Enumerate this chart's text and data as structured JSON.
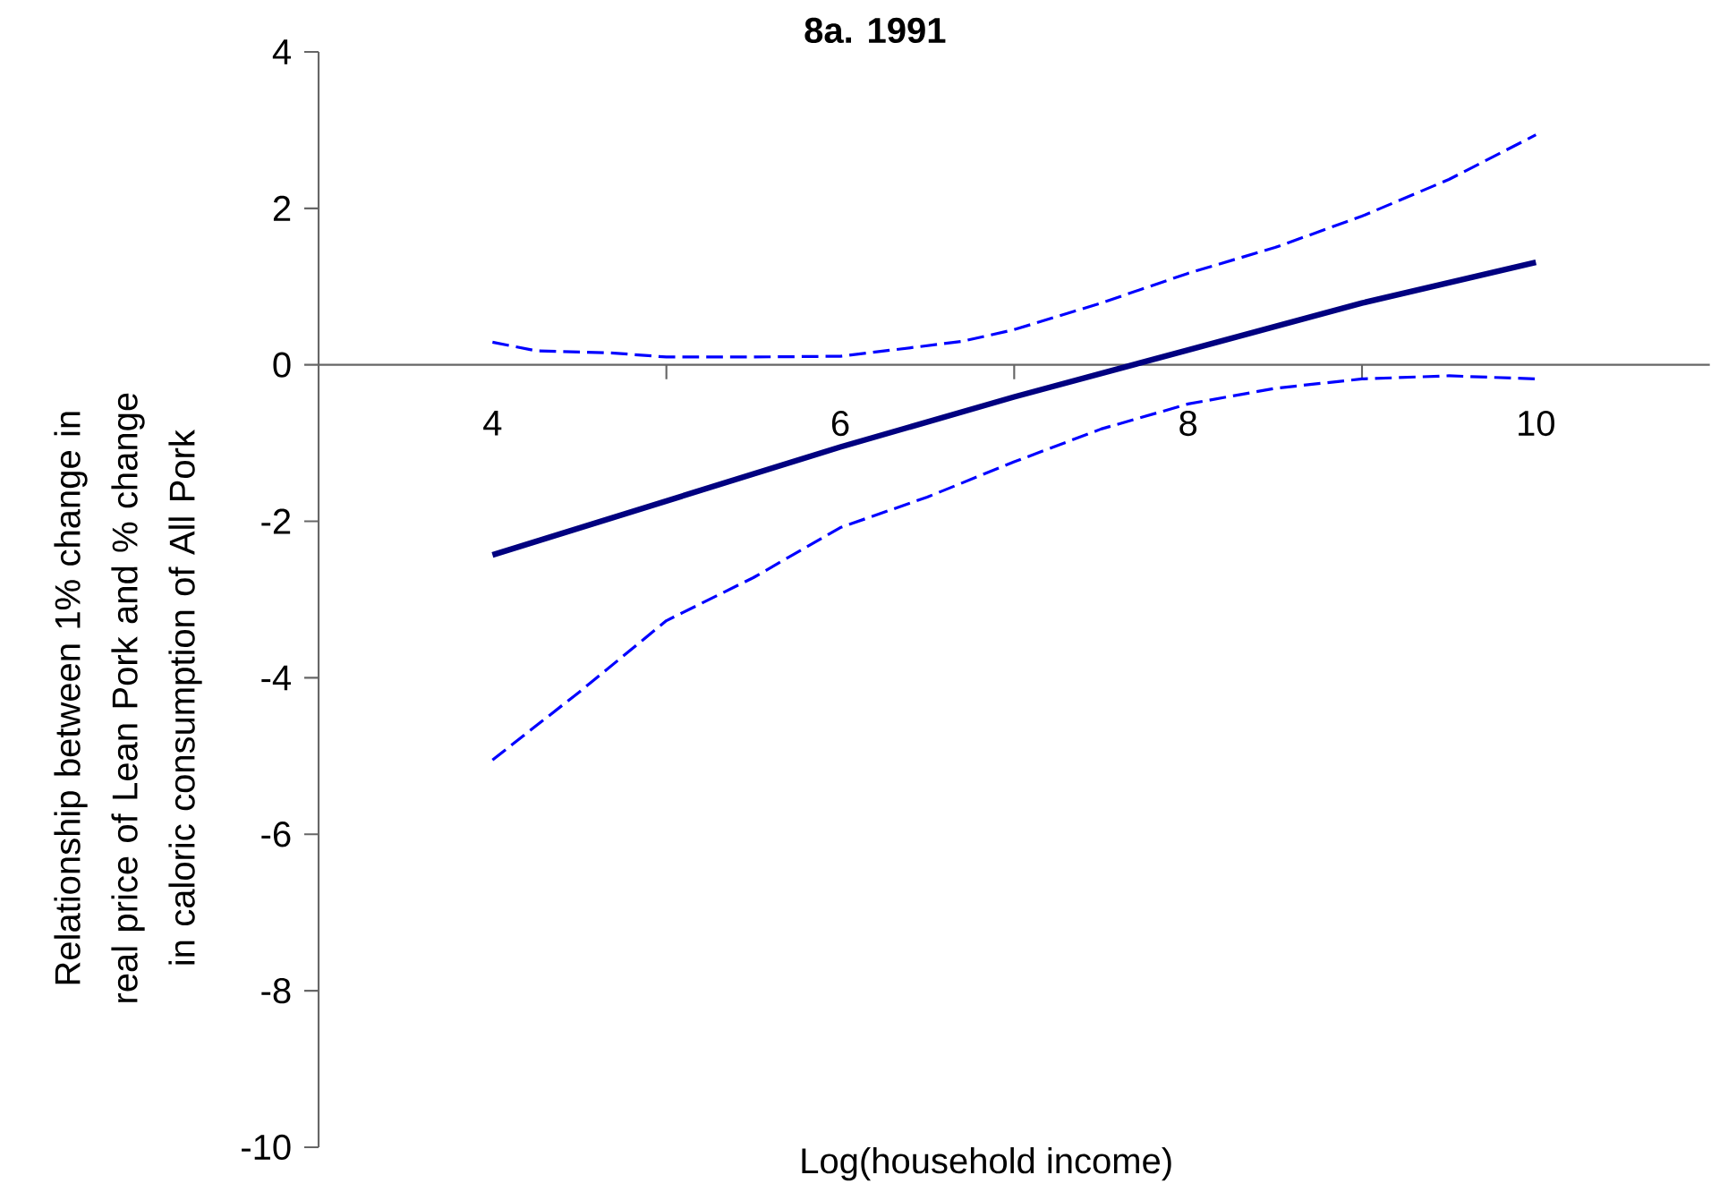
{
  "chart_data": {
    "type": "line",
    "title": "8a. 1991",
    "xlabel": "Log(household income)",
    "ylabel": "Relationship between 1% change in real price of Lean Pork and % change in caloric consumption of All Pork",
    "xlim": [
      3,
      11
    ],
    "ylim": [
      -10,
      4
    ],
    "xticks": [
      {
        "value": 4,
        "label": "4"
      },
      {
        "value": 5,
        "label": null
      },
      {
        "value": 6,
        "label": "6"
      },
      {
        "value": 7,
        "label": null
      },
      {
        "value": 8,
        "label": "8"
      },
      {
        "value": 9,
        "label": null
      },
      {
        "value": 10,
        "label": "10"
      }
    ],
    "yticks": [
      -10,
      -8,
      -6,
      -4,
      -2,
      0,
      2,
      4
    ],
    "grid": false,
    "marker": "none",
    "series": [
      {
        "color": "#000080",
        "line_style": "solid",
        "x": [
          4,
          5,
          6,
          7,
          8,
          9,
          10
        ],
        "values": [
          -2.43,
          -1.74,
          -1.05,
          -0.41,
          0.19,
          0.79,
          1.31
        ]
      },
      {
        "color": "#0000ff",
        "line_style": "dashed",
        "x": [
          4,
          4.25,
          4.7,
          5,
          5.5,
          6,
          6.3,
          6.7,
          7,
          7.5,
          8,
          8.5,
          9,
          9.5,
          10
        ],
        "values": [
          0.29,
          0.18,
          0.15,
          0.1,
          0.1,
          0.11,
          0.19,
          0.3,
          0.45,
          0.79,
          1.17,
          1.5,
          1.9,
          2.37,
          2.94
        ]
      },
      {
        "color": "#0000ff",
        "line_style": "dashed",
        "x": [
          4,
          4.5,
          5,
          5.5,
          6,
          6.5,
          7,
          7.5,
          8,
          8.5,
          9,
          9.5,
          10
        ],
        "values": [
          -5.05,
          -4.18,
          -3.27,
          -2.72,
          -2.08,
          -1.69,
          -1.24,
          -0.82,
          -0.5,
          -0.3,
          -0.18,
          -0.14,
          -0.18
        ]
      }
    ]
  }
}
